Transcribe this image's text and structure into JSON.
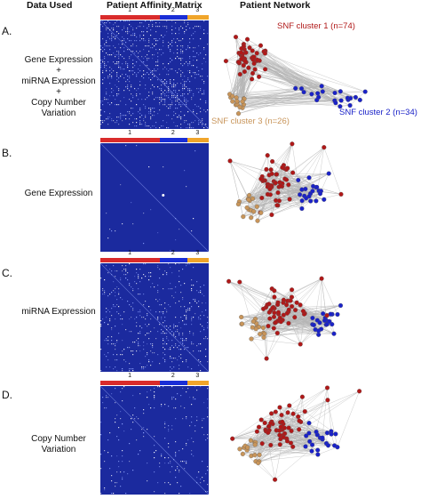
{
  "headers": {
    "data_used": "Data Used",
    "affinity_matrix": "Patient Affinity Matrix",
    "patient_network": "Patient Network"
  },
  "colors": {
    "cluster1": "#d92b2b",
    "cluster2": "#1a2ed6",
    "cluster3": "#f0a52a",
    "matrix_bg": "#1b2a9e",
    "node_red": "#b01818",
    "node_blue": "#1a22c8",
    "node_tan": "#c8955a",
    "edge": "#b5b5b5"
  },
  "cluster_bar": {
    "labels": [
      "1",
      "2",
      "3"
    ],
    "fractions": [
      0.55,
      0.25,
      0.2
    ]
  },
  "panels": [
    {
      "letter": "A.",
      "data_lines": [
        "Gene Expression",
        "+",
        "miRNA Expression",
        "+",
        "Copy Number",
        "Variation"
      ],
      "network_labels": [
        "SNF cluster 1 (n=74)",
        "SNF cluster 2 (n=34)",
        "SNF cluster 3 (n=26)"
      ]
    },
    {
      "letter": "B.",
      "data_lines": [
        "Gene Expression"
      ],
      "network_labels": []
    },
    {
      "letter": "C.",
      "data_lines": [
        "miRNA Expression"
      ],
      "network_labels": []
    },
    {
      "letter": "D.",
      "data_lines": [
        "Copy Number",
        "Variation"
      ],
      "network_labels": []
    }
  ]
}
